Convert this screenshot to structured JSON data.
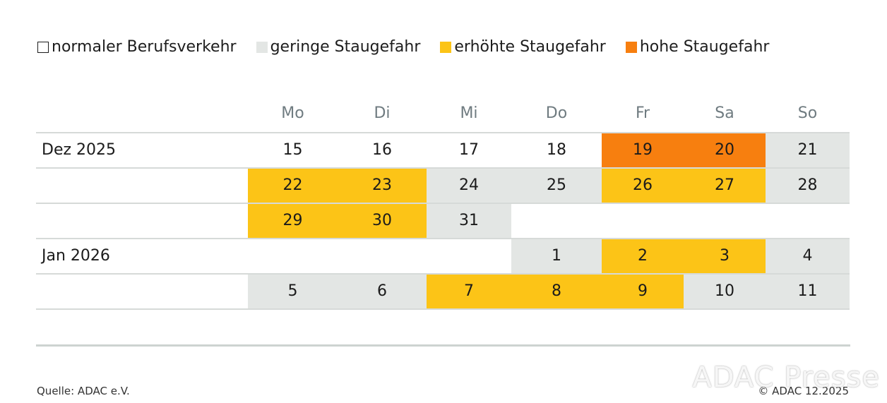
{
  "legend": [
    {
      "label": "normaler Berufsverkehr",
      "color": "#ffffff"
    },
    {
      "label": "geringe Staugefahr",
      "color": "#e3e6e4"
    },
    {
      "label": "erhöhte Staugefahr",
      "color": "#fcc417"
    },
    {
      "label": "hohe Staugefahr",
      "color": "#f77f0f"
    }
  ],
  "chart_data": {
    "type": "table",
    "title": "",
    "days": [
      "Mo",
      "Di",
      "Mi",
      "Do",
      "Fr",
      "Sa",
      "So"
    ],
    "level_colors": [
      "#ffffff",
      "#e3e6e4",
      "#fcc417",
      "#f77f0f"
    ],
    "rows": [
      {
        "month": "Dez 2025",
        "cells": [
          {
            "day": "15",
            "level": 0
          },
          {
            "day": "16",
            "level": 0
          },
          {
            "day": "17",
            "level": 0
          },
          {
            "day": "18",
            "level": 0
          },
          {
            "day": "19",
            "level": 3
          },
          {
            "day": "20",
            "level": 3
          },
          {
            "day": "21",
            "level": 1
          }
        ]
      },
      {
        "month": "",
        "cells": [
          {
            "day": "22",
            "level": 2
          },
          {
            "day": "23",
            "level": 2
          },
          {
            "day": "24",
            "level": 1
          },
          {
            "day": "25",
            "level": 1
          },
          {
            "day": "26",
            "level": 2
          },
          {
            "day": "27",
            "level": 2
          },
          {
            "day": "28",
            "level": 1
          }
        ]
      },
      {
        "month": "",
        "cells": [
          {
            "day": "29",
            "level": 2
          },
          {
            "day": "30",
            "level": 2
          },
          {
            "day": "31",
            "level": 1
          },
          null,
          null,
          null,
          null
        ]
      },
      {
        "month": "Jan 2026",
        "cells": [
          null,
          null,
          null,
          {
            "day": "1",
            "level": 1
          },
          {
            "day": "2",
            "level": 2
          },
          {
            "day": "3",
            "level": 2
          },
          {
            "day": "4",
            "level": 1
          }
        ]
      },
      {
        "month": "",
        "cells": [
          {
            "day": "5",
            "level": 1
          },
          {
            "day": "6",
            "level": 1
          },
          {
            "day": "7",
            "level": 2
          },
          {
            "day": "8",
            "level": 2
          },
          {
            "day": "9",
            "level": 2
          },
          {
            "day": "10",
            "level": 1
          },
          {
            "day": "11",
            "level": 1
          }
        ]
      }
    ]
  },
  "footer": {
    "source": "Quelle: ADAC e.V.",
    "copyright": "© ADAC 12.2025",
    "watermark": "ADAC Presse"
  }
}
